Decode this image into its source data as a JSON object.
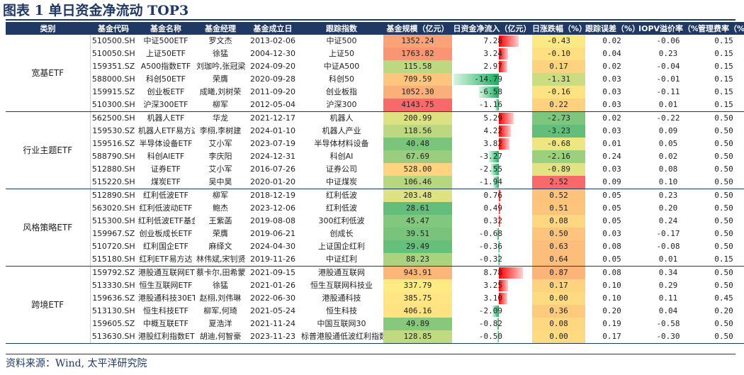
{
  "title": "图表 1 单日资金净流动 TOP3",
  "source": "资料来源：Wind, 太平洋研究院",
  "headers": [
    "类别",
    "基金代码",
    "基金名称",
    "基金经理",
    "基金成立日",
    "跟踪指数",
    "基金规模（亿元）",
    "日资金净流入（亿元）",
    "日涨跌幅（%）",
    "跟踪误差（%）",
    "IOPV溢价率（%）",
    "管理费率（%）"
  ],
  "colors": {
    "header_bg": "#1f3864",
    "flow_pos": "#ff0000",
    "flow_neg": "#18b060"
  },
  "groups": [
    {
      "category": "宽基ETF",
      "rows": [
        {
          "code": "510500.SH",
          "name": "中证500ETF",
          "manager": "罗文杰",
          "date": "2013-02-06",
          "index": "中证500",
          "scale": "1352.24",
          "flow": "7.28",
          "change": "-0.43",
          "te": "0.02",
          "iopv": "-0.06",
          "fee": "0.15"
        },
        {
          "code": "510050.SH",
          "name": "上证50ETF",
          "manager": "徐猛",
          "date": "2004-12-30",
          "index": "上证50",
          "scale": "1763.82",
          "flow": "3.24",
          "change": "-0.10",
          "te": "0.04",
          "iopv": "0.23",
          "fee": "0.15"
        },
        {
          "code": "159351.SZ",
          "name": "A500指数ETF",
          "manager": "刘珈吟,张冠梁",
          "date": "2024-09-20",
          "index": "中证A500",
          "scale": "115.58",
          "flow": "2.97",
          "change": "0.17",
          "te": "0.02",
          "iopv": "-0.04",
          "fee": "0.15"
        },
        {
          "code": "588000.SH",
          "name": "科创50ETF",
          "manager": "荣膺",
          "date": "2020-09-28",
          "index": "科创50",
          "scale": "709.59",
          "flow": "-14.79",
          "change": "-1.31",
          "te": "0.03",
          "iopv": "-0.01",
          "fee": "0.15"
        },
        {
          "code": "159915.SZ",
          "name": "创业板ETF",
          "manager": "成曦,刘树荣",
          "date": "2011-09-20",
          "index": "创业板指",
          "scale": "1052.30",
          "flow": "-6.58",
          "change": "-0.16",
          "te": "0.03",
          "iopv": "-0.11",
          "fee": "0.15"
        },
        {
          "code": "510300.SH",
          "name": "沪深300ETF",
          "manager": "柳军",
          "date": "2012-05-04",
          "index": "沪深300",
          "scale": "4143.75",
          "flow": "-1.16",
          "change": "0.22",
          "te": "0.03",
          "iopv": "0.01",
          "fee": "0.15"
        }
      ]
    },
    {
      "category": "行业主题ETF",
      "rows": [
        {
          "code": "562500.SH",
          "name": "机器人ETF",
          "manager": "华龙",
          "date": "2021-12-17",
          "index": "机器人",
          "scale": "200.99",
          "flow": "5.29",
          "change": "-2.73",
          "te": "0.02",
          "iopv": "-0.22",
          "fee": "0.50"
        },
        {
          "code": "159530.SZ",
          "name": "机器人ETF易方达",
          "manager": "李栩,李树建",
          "date": "2024-01-10",
          "index": "机器人产业",
          "scale": "118.56",
          "flow": "4.22",
          "change": "-3.23",
          "te": "0.03",
          "iopv": "0.09",
          "fee": "0.50"
        },
        {
          "code": "159516.SZ",
          "name": "半导体设备ETF",
          "manager": "艾小军",
          "date": "2023-07-19",
          "index": "半导体材料设备",
          "scale": "40.48",
          "flow": "3.82",
          "change": "-0.68",
          "te": "0.01",
          "iopv": "0.05",
          "fee": "0.50"
        },
        {
          "code": "588790.SH",
          "name": "科创AIETF",
          "manager": "李庆阳",
          "date": "2024-12-31",
          "index": "科创AI",
          "scale": "67.69",
          "flow": "-3.27",
          "change": "-2.16",
          "te": "0.24",
          "iopv": "0.02",
          "fee": "0.50"
        },
        {
          "code": "512880.SH",
          "name": "证券ETF",
          "manager": "艾小军",
          "date": "2016-07-26",
          "index": "证券公司",
          "scale": "528.00",
          "flow": "-2.55",
          "change": "-0.89",
          "te": "0.03",
          "iopv": "0.08",
          "fee": "0.50"
        },
        {
          "code": "515220.SH",
          "name": "煤炭ETF",
          "manager": "吴中昊",
          "date": "2020-01-20",
          "index": "中证煤炭",
          "scale": "106.46",
          "flow": "-1.94",
          "change": "2.52",
          "te": "0.09",
          "iopv": "0.10",
          "fee": "0.50"
        }
      ]
    },
    {
      "category": "风格策略ETF",
      "rows": [
        {
          "code": "512890.SH",
          "name": "红利低波ETF",
          "manager": "柳军",
          "date": "2018-12-19",
          "index": "红利低波",
          "scale": "203.48",
          "flow": "0.76",
          "change": "0.52",
          "te": "0.05",
          "iopv": "0.23",
          "fee": "0.50"
        },
        {
          "code": "563020.SH",
          "name": "红利低波动ETF",
          "manager": "鲍杰",
          "date": "2023-12-06",
          "index": "红利低波",
          "scale": "28.61",
          "flow": "0.49",
          "change": "0.51",
          "te": "0.05",
          "iopv": "0.20",
          "fee": "0.50"
        },
        {
          "code": "515300.SH",
          "name": "红利低波ETF基金",
          "manager": "王紫菡",
          "date": "2019-08-08",
          "index": "300红利低波",
          "scale": "45.47",
          "flow": "0.32",
          "change": "0.08",
          "te": "0.05",
          "iopv": "0.24",
          "fee": "0.50"
        },
        {
          "code": "159967.SZ",
          "name": "创业板成长ETF",
          "manager": "荣膺",
          "date": "2019-06-21",
          "index": "创成长",
          "scale": "39.51",
          "flow": "-0.68",
          "change": "0.50",
          "te": "0.03",
          "iopv": "-0.17",
          "fee": "0.50"
        },
        {
          "code": "510720.SH",
          "name": "红利国企ETF",
          "manager": "麻绎文",
          "date": "2024-04-30",
          "index": "上证国企红利",
          "scale": "29.49",
          "flow": "-0.36",
          "change": "0.63",
          "te": "0.08",
          "iopv": "-0.08",
          "fee": "0.50"
        },
        {
          "code": "515180.SH",
          "name": "红利ETF易方达",
          "manager": "林伟斌,宋钊贤",
          "date": "2019-11-26",
          "index": "中证红利",
          "scale": "88.23",
          "flow": "-0.32",
          "change": "0.64",
          "te": "0.05",
          "iopv": "0.01",
          "fee": "0.15"
        }
      ]
    },
    {
      "category": "跨境ETF",
      "rows": [
        {
          "code": "159792.SZ",
          "name": "港股通互联网ETF",
          "manager": "蔡卡尔,田希蒙",
          "date": "2021-09-15",
          "index": "港股通互联网",
          "scale": "943.91",
          "flow": "8.78",
          "change": "0.87",
          "te": "0.08",
          "iopv": "0.34",
          "fee": "0.50"
        },
        {
          "code": "513330.SH",
          "name": "恒生互联网ETF",
          "manager": "徐猛",
          "date": "2021-01-26",
          "index": "恒生互联网科技业",
          "scale": "337.79",
          "flow": "3.25",
          "change": "0.17",
          "te": "0.10",
          "iopv": "0.29",
          "fee": "0.50"
        },
        {
          "code": "159636.SZ",
          "name": "港股通科技30ETF",
          "manager": "赵栩,刘伟琳",
          "date": "2022-06-30",
          "index": "港股通科技",
          "scale": "385.75",
          "flow": "3.10",
          "change": "0.00",
          "te": "0.10",
          "iopv": "0.11",
          "fee": "0.45"
        },
        {
          "code": "513130.SH",
          "name": "恒生科技ETF",
          "manager": "柳军,何琦",
          "date": "2021-05-24",
          "index": "恒生科技",
          "scale": "406.16",
          "flow": "-2.09",
          "change": "0.36",
          "te": "0.20",
          "iopv": "0.04",
          "fee": "0.20"
        },
        {
          "code": "159605.SZ",
          "name": "中概互联ETF",
          "manager": "夏浩洋",
          "date": "2021-11-24",
          "index": "中国互联网30",
          "scale": "49.89",
          "flow": "-0.82",
          "change": "0.08",
          "te": "0.19",
          "iopv": "-0.58",
          "fee": "0.50"
        },
        {
          "code": "513630.SH",
          "name": "港股红利指数ETF",
          "manager": "胡迪,何智豪",
          "date": "2023-11-23",
          "index": "标普港股通低波红利指数",
          "scale": "128.85",
          "flow": "-0.50",
          "change": "0.00",
          "te": "0.17",
          "iopv": "-0.30",
          "fee": "0.50"
        }
      ]
    }
  ]
}
